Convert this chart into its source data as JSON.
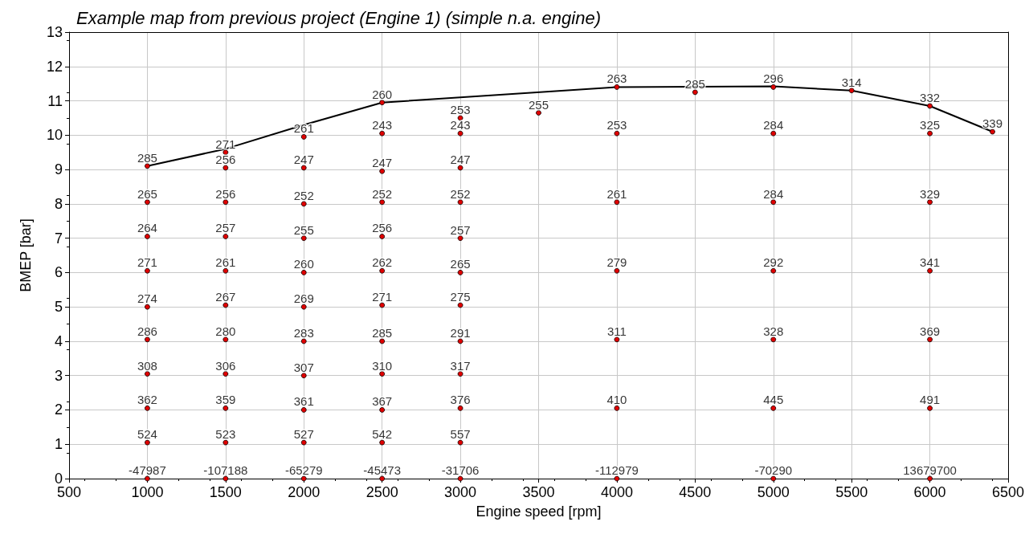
{
  "chart_data": {
    "type": "scatter",
    "title": "Example map from previous project (Engine 1) (simple n.a. engine)",
    "xlabel": "Engine speed [rpm]",
    "ylabel": "BMEP [bar]",
    "xlim": [
      500,
      6500
    ],
    "xticks": [
      500,
      1000,
      1500,
      2000,
      2500,
      3000,
      3500,
      4000,
      4500,
      5000,
      5500,
      6000,
      6500
    ],
    "ylim": [
      0,
      13
    ],
    "yticks": [
      0,
      1,
      2,
      3,
      4,
      5,
      6,
      7,
      8,
      9,
      10,
      11,
      12,
      13
    ],
    "grid": true,
    "marker": "circle",
    "series": [
      {
        "type": "line",
        "color": "#000000",
        "marker": "none",
        "x": [
          1000,
          1500,
          2000,
          2500,
          4000,
          5000,
          5500,
          6000,
          6400
        ],
        "values": [
          9.1,
          9.6,
          10.3,
          10.95,
          11.4,
          11.42,
          11.3,
          10.85,
          10.1
        ]
      },
      {
        "color": "#e00000",
        "x": [
          1000,
          1000,
          1000,
          1000,
          1000,
          1000,
          1000,
          1000,
          1000,
          1000,
          1500,
          1500,
          1500,
          1500,
          1500,
          1500,
          1500,
          1500,
          1500,
          1500,
          1500,
          2000,
          2000,
          2000,
          2000,
          2000,
          2000,
          2000,
          2000,
          2000,
          2000,
          2000,
          2500,
          2500,
          2500,
          2500,
          2500,
          2500,
          2500,
          2500,
          2500,
          2500,
          2500,
          2500,
          3000,
          3000,
          3000,
          3000,
          3000,
          3000,
          3000,
          3000,
          3000,
          3000,
          3000,
          3000,
          3500,
          4000,
          4000,
          4000,
          4000,
          4000,
          4000,
          4000,
          4500,
          5000,
          5000,
          5000,
          5000,
          5000,
          5000,
          5000,
          5500,
          6000,
          6000,
          6000,
          6000,
          6000,
          6000,
          6000,
          6400
        ],
        "values": [
          9.1,
          8.05,
          7.05,
          6.05,
          5,
          4.05,
          3.05,
          2.05,
          1.05,
          0,
          9.5,
          9.05,
          8.05,
          7.05,
          6.05,
          5.05,
          4.05,
          3.05,
          2.05,
          1.05,
          0,
          9.95,
          9.05,
          8,
          7,
          6,
          5,
          4,
          3,
          2,
          1.05,
          0,
          10.95,
          10.05,
          8.95,
          8.05,
          7.05,
          6.05,
          5.05,
          4,
          3.05,
          2,
          1.05,
          0,
          10.5,
          10.05,
          9.05,
          8.05,
          7,
          6,
          5.05,
          4,
          3.05,
          2.05,
          1.05,
          0,
          10.65,
          11.4,
          10.05,
          8.05,
          6.05,
          4.05,
          2.05,
          0,
          11.25,
          11.4,
          10.05,
          8.05,
          6.05,
          4.05,
          2.05,
          0,
          11.3,
          10.85,
          10.05,
          8.05,
          6.05,
          4.05,
          2.05,
          0,
          10.1
        ]
      }
    ],
    "annotations": [
      {
        "text": "285",
        "x": 1000,
        "y": 9.1
      },
      {
        "text": "265",
        "x": 1000,
        "y": 8.05
      },
      {
        "text": "264",
        "x": 1000,
        "y": 7.05
      },
      {
        "text": "271",
        "x": 1000,
        "y": 6.05
      },
      {
        "text": "274",
        "x": 1000,
        "y": 5
      },
      {
        "text": "286",
        "x": 1000,
        "y": 4.05
      },
      {
        "text": "308",
        "x": 1000,
        "y": 3.05
      },
      {
        "text": "362",
        "x": 1000,
        "y": 2.05
      },
      {
        "text": "524",
        "x": 1000,
        "y": 1.05
      },
      {
        "text": "-47987",
        "x": 1000,
        "y": 0
      },
      {
        "text": "271",
        "x": 1500,
        "y": 9.5
      },
      {
        "text": "256",
        "x": 1500,
        "y": 9.05
      },
      {
        "text": "256",
        "x": 1500,
        "y": 8.05
      },
      {
        "text": "257",
        "x": 1500,
        "y": 7.05
      },
      {
        "text": "261",
        "x": 1500,
        "y": 6.05
      },
      {
        "text": "267",
        "x": 1500,
        "y": 5.05
      },
      {
        "text": "280",
        "x": 1500,
        "y": 4.05
      },
      {
        "text": "306",
        "x": 1500,
        "y": 3.05
      },
      {
        "text": "359",
        "x": 1500,
        "y": 2.05
      },
      {
        "text": "523",
        "x": 1500,
        "y": 1.05
      },
      {
        "text": "-107188",
        "x": 1500,
        "y": 0
      },
      {
        "text": "261",
        "x": 2000,
        "y": 9.95
      },
      {
        "text": "247",
        "x": 2000,
        "y": 9.05
      },
      {
        "text": "252",
        "x": 2000,
        "y": 8
      },
      {
        "text": "255",
        "x": 2000,
        "y": 7
      },
      {
        "text": "260",
        "x": 2000,
        "y": 6
      },
      {
        "text": "269",
        "x": 2000,
        "y": 5
      },
      {
        "text": "283",
        "x": 2000,
        "y": 4
      },
      {
        "text": "307",
        "x": 2000,
        "y": 3
      },
      {
        "text": "361",
        "x": 2000,
        "y": 2
      },
      {
        "text": "527",
        "x": 2000,
        "y": 1.05
      },
      {
        "text": "-65279",
        "x": 2000,
        "y": 0
      },
      {
        "text": "260",
        "x": 2500,
        "y": 10.95
      },
      {
        "text": "243",
        "x": 2500,
        "y": 10.05
      },
      {
        "text": "247",
        "x": 2500,
        "y": 8.95
      },
      {
        "text": "252",
        "x": 2500,
        "y": 8.05
      },
      {
        "text": "256",
        "x": 2500,
        "y": 7.05
      },
      {
        "text": "262",
        "x": 2500,
        "y": 6.05
      },
      {
        "text": "271",
        "x": 2500,
        "y": 5.05
      },
      {
        "text": "285",
        "x": 2500,
        "y": 4
      },
      {
        "text": "310",
        "x": 2500,
        "y": 3.05
      },
      {
        "text": "367",
        "x": 2500,
        "y": 2
      },
      {
        "text": "542",
        "x": 2500,
        "y": 1.05
      },
      {
        "text": "-45473",
        "x": 2500,
        "y": 0
      },
      {
        "text": "253",
        "x": 3000,
        "y": 10.5
      },
      {
        "text": "243",
        "x": 3000,
        "y": 10.05
      },
      {
        "text": "247",
        "x": 3000,
        "y": 9.05
      },
      {
        "text": "252",
        "x": 3000,
        "y": 8.05
      },
      {
        "text": "257",
        "x": 3000,
        "y": 7
      },
      {
        "text": "265",
        "x": 3000,
        "y": 6
      },
      {
        "text": "275",
        "x": 3000,
        "y": 5.05
      },
      {
        "text": "291",
        "x": 3000,
        "y": 4
      },
      {
        "text": "317",
        "x": 3000,
        "y": 3.05
      },
      {
        "text": "376",
        "x": 3000,
        "y": 2.05
      },
      {
        "text": "557",
        "x": 3000,
        "y": 1.05
      },
      {
        "text": "-31706",
        "x": 3000,
        "y": 0
      },
      {
        "text": "255",
        "x": 3500,
        "y": 10.65
      },
      {
        "text": "263",
        "x": 4000,
        "y": 11.4
      },
      {
        "text": "253",
        "x": 4000,
        "y": 10.05
      },
      {
        "text": "261",
        "x": 4000,
        "y": 8.05
      },
      {
        "text": "279",
        "x": 4000,
        "y": 6.05
      },
      {
        "text": "311",
        "x": 4000,
        "y": 4.05
      },
      {
        "text": "410",
        "x": 4000,
        "y": 2.05
      },
      {
        "text": "-112979",
        "x": 4000,
        "y": 0
      },
      {
        "text": "285",
        "x": 4500,
        "y": 11.25
      },
      {
        "text": "296",
        "x": 5000,
        "y": 11.4
      },
      {
        "text": "284",
        "x": 5000,
        "y": 10.05
      },
      {
        "text": "284",
        "x": 5000,
        "y": 8.05
      },
      {
        "text": "292",
        "x": 5000,
        "y": 6.05
      },
      {
        "text": "328",
        "x": 5000,
        "y": 4.05
      },
      {
        "text": "445",
        "x": 5000,
        "y": 2.05
      },
      {
        "text": "-70290",
        "x": 5000,
        "y": 0
      },
      {
        "text": "314",
        "x": 5500,
        "y": 11.3
      },
      {
        "text": "332",
        "x": 6000,
        "y": 10.85
      },
      {
        "text": "325",
        "x": 6000,
        "y": 10.05
      },
      {
        "text": "329",
        "x": 6000,
        "y": 8.05
      },
      {
        "text": "341",
        "x": 6000,
        "y": 6.05
      },
      {
        "text": "369",
        "x": 6000,
        "y": 4.05
      },
      {
        "text": "491",
        "x": 6000,
        "y": 2.05
      },
      {
        "text": "13679700",
        "x": 6000,
        "y": 0
      },
      {
        "text": "339",
        "x": 6400,
        "y": 10.1
      }
    ]
  }
}
